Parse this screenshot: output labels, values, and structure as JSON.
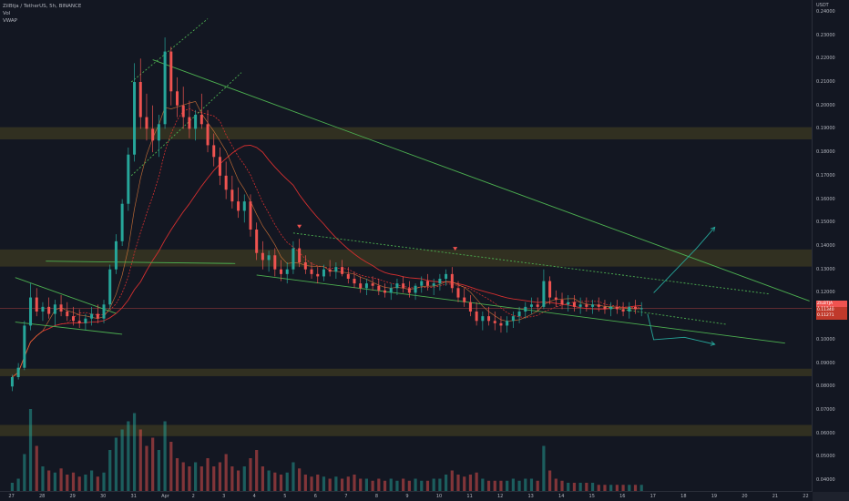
{
  "legend": {
    "symbol": "ZilBtja / TetherUS, 5h, BINANCE",
    "vol": "Vol",
    "vwap": "VWAP"
  },
  "price_axis": {
    "currency": "USDT",
    "ticks": [
      "0.24000",
      "0.23000",
      "0.22000",
      "0.21000",
      "0.20000",
      "0.19000",
      "0.18000",
      "0.17000",
      "0.16000",
      "0.15000",
      "0.14000",
      "0.13000",
      "0.12000",
      "0.11000",
      "0.10000",
      "0.09000",
      "0.08000",
      "0.07000",
      "0.06000",
      "0.05000",
      "0.04000"
    ]
  },
  "price_tags": [
    {
      "label": "ZILBTJA 0.11340",
      "color": "#ef5350"
    },
    {
      "label": "0.11340",
      "color": "#c0392b"
    },
    {
      "label": "0.11271",
      "color": "#c0392b"
    }
  ],
  "time_axis": {
    "ticks": [
      "27",
      "28",
      "29",
      "30",
      "31",
      "Apr",
      "2",
      "3",
      "4",
      "5",
      "6",
      "7",
      "8",
      "9",
      "10",
      "11",
      "12",
      "13",
      "14",
      "15",
      "16",
      "17",
      "18",
      "19",
      "20",
      "21",
      "22"
    ]
  },
  "corner": "",
  "colors": {
    "background": "#131722",
    "up": "#26a69a",
    "down": "#ef5350",
    "zone": "#4a4520",
    "trendline": "#4caf50",
    "ema_red": "#d32f2f",
    "ema_orange": "#e07b39",
    "vwap": "#c9a227"
  },
  "chart_data": {
    "type": "candlestick",
    "title": "ZilBtja / TetherUS, 5h, BINANCE",
    "ylim": [
      0.035,
      0.245
    ],
    "x_range_days": [
      26.6,
      53.2
    ],
    "support_resistance_zones": [
      {
        "low": 0.1855,
        "high": 0.1907
      },
      {
        "low": 0.1312,
        "high": 0.1385
      },
      {
        "low": 0.0844,
        "high": 0.0876
      },
      {
        "low": 0.0588,
        "high": 0.0636
      }
    ],
    "trendlines": [
      {
        "from": [
          27.1,
          0.1265
        ],
        "to": [
          30.4,
          0.1112
        ],
        "style": "solid"
      },
      {
        "from": [
          27.1,
          0.1075
        ],
        "to": [
          30.6,
          0.1023
        ],
        "style": "solid"
      },
      {
        "from": [
          28.1,
          0.1335
        ],
        "to": [
          34.3,
          0.1325
        ],
        "style": "solid"
      },
      {
        "from": [
          31.6,
          0.2195
        ],
        "to": [
          53.1,
          0.1165
        ],
        "style": "solid"
      },
      {
        "from": [
          35.0,
          0.1276
        ],
        "to": [
          52.3,
          0.0985
        ],
        "style": "solid"
      },
      {
        "from": [
          36.2,
          0.1455
        ],
        "to": [
          51.8,
          0.1195
        ],
        "style": "dotted"
      },
      {
        "from": [
          30.9,
          0.21
        ],
        "to": [
          33.4,
          0.237
        ],
        "style": "dotted"
      },
      {
        "from": [
          30.9,
          0.17
        ],
        "to": [
          34.5,
          0.214
        ],
        "style": "dotted"
      },
      {
        "from": [
          46.4,
          0.114
        ],
        "to": [
          50.4,
          0.1065
        ],
        "style": "dotted"
      }
    ],
    "markers": [
      {
        "x": 36.4,
        "y": 0.1475,
        "type": "down-arrow"
      },
      {
        "x": 41.5,
        "y": 0.138,
        "type": "down-arrow"
      }
    ],
    "projections": [
      {
        "points": [
          [
            48.0,
            0.12
          ],
          [
            49.4,
            0.139
          ],
          [
            50.0,
            0.148
          ]
        ],
        "label": "up"
      },
      {
        "points": [
          [
            47.8,
            0.111
          ],
          [
            48.0,
            0.1
          ],
          [
            49.0,
            0.101
          ],
          [
            50.0,
            0.098
          ]
        ],
        "label": "down"
      }
    ],
    "candles_ohlc": [
      [
        27.0,
        0.08,
        0.085,
        0.078,
        0.084
      ],
      [
        27.2,
        0.084,
        0.09,
        0.083,
        0.088
      ],
      [
        27.4,
        0.088,
        0.108,
        0.087,
        0.106
      ],
      [
        27.6,
        0.106,
        0.124,
        0.104,
        0.118
      ],
      [
        27.8,
        0.118,
        0.122,
        0.11,
        0.112
      ],
      [
        28.0,
        0.112,
        0.116,
        0.108,
        0.114
      ],
      [
        28.2,
        0.114,
        0.118,
        0.109,
        0.111
      ],
      [
        28.4,
        0.111,
        0.117,
        0.106,
        0.115
      ],
      [
        28.6,
        0.115,
        0.119,
        0.11,
        0.112
      ],
      [
        28.8,
        0.112,
        0.116,
        0.108,
        0.11
      ],
      [
        29.0,
        0.11,
        0.114,
        0.106,
        0.108
      ],
      [
        29.2,
        0.108,
        0.113,
        0.105,
        0.107
      ],
      [
        29.4,
        0.107,
        0.111,
        0.104,
        0.109
      ],
      [
        29.6,
        0.109,
        0.114,
        0.106,
        0.111
      ],
      [
        29.8,
        0.111,
        0.115,
        0.107,
        0.109
      ],
      [
        30.0,
        0.109,
        0.117,
        0.107,
        0.115
      ],
      [
        30.2,
        0.115,
        0.132,
        0.113,
        0.13
      ],
      [
        30.4,
        0.13,
        0.145,
        0.128,
        0.142
      ],
      [
        30.6,
        0.142,
        0.16,
        0.14,
        0.158
      ],
      [
        30.8,
        0.158,
        0.182,
        0.155,
        0.179
      ],
      [
        31.0,
        0.179,
        0.218,
        0.176,
        0.21
      ],
      [
        31.2,
        0.21,
        0.22,
        0.19,
        0.195
      ],
      [
        31.4,
        0.195,
        0.205,
        0.185,
        0.19
      ],
      [
        31.6,
        0.19,
        0.2,
        0.18,
        0.185
      ],
      [
        31.8,
        0.185,
        0.196,
        0.178,
        0.192
      ],
      [
        32.0,
        0.192,
        0.229,
        0.19,
        0.223
      ],
      [
        32.2,
        0.223,
        0.225,
        0.2,
        0.206
      ],
      [
        32.4,
        0.206,
        0.212,
        0.195,
        0.2
      ],
      [
        32.6,
        0.2,
        0.208,
        0.19,
        0.195
      ],
      [
        32.8,
        0.195,
        0.202,
        0.186,
        0.19
      ],
      [
        33.0,
        0.19,
        0.198,
        0.185,
        0.196
      ],
      [
        33.2,
        0.196,
        0.205,
        0.19,
        0.192
      ],
      [
        33.4,
        0.192,
        0.198,
        0.18,
        0.183
      ],
      [
        33.6,
        0.183,
        0.188,
        0.174,
        0.178
      ],
      [
        33.8,
        0.178,
        0.182,
        0.166,
        0.17
      ],
      [
        34.0,
        0.17,
        0.176,
        0.16,
        0.164
      ],
      [
        34.2,
        0.164,
        0.17,
        0.156,
        0.159
      ],
      [
        34.4,
        0.159,
        0.165,
        0.152,
        0.155
      ],
      [
        34.6,
        0.155,
        0.162,
        0.15,
        0.159
      ],
      [
        34.8,
        0.159,
        0.162,
        0.144,
        0.147
      ],
      [
        35.0,
        0.147,
        0.15,
        0.134,
        0.137
      ],
      [
        35.2,
        0.137,
        0.142,
        0.13,
        0.134
      ],
      [
        35.4,
        0.134,
        0.138,
        0.129,
        0.136
      ],
      [
        35.6,
        0.136,
        0.139,
        0.127,
        0.13
      ],
      [
        35.8,
        0.13,
        0.134,
        0.125,
        0.128
      ],
      [
        36.0,
        0.128,
        0.133,
        0.124,
        0.13
      ],
      [
        36.2,
        0.13,
        0.142,
        0.128,
        0.139
      ],
      [
        36.4,
        0.139,
        0.143,
        0.131,
        0.133
      ],
      [
        36.6,
        0.133,
        0.136,
        0.128,
        0.13
      ],
      [
        36.8,
        0.13,
        0.133,
        0.126,
        0.128
      ],
      [
        37.0,
        0.128,
        0.131,
        0.124,
        0.127
      ],
      [
        37.2,
        0.127,
        0.132,
        0.125,
        0.13
      ],
      [
        37.4,
        0.13,
        0.134,
        0.127,
        0.129
      ],
      [
        37.6,
        0.129,
        0.133,
        0.126,
        0.131
      ],
      [
        37.8,
        0.131,
        0.134,
        0.127,
        0.128
      ],
      [
        38.0,
        0.128,
        0.131,
        0.124,
        0.126
      ],
      [
        38.2,
        0.126,
        0.129,
        0.122,
        0.124
      ],
      [
        38.4,
        0.124,
        0.127,
        0.12,
        0.122
      ],
      [
        38.6,
        0.122,
        0.126,
        0.119,
        0.124
      ],
      [
        38.8,
        0.124,
        0.127,
        0.121,
        0.123
      ],
      [
        39.0,
        0.123,
        0.126,
        0.119,
        0.121
      ],
      [
        39.2,
        0.121,
        0.124,
        0.118,
        0.12
      ],
      [
        39.4,
        0.12,
        0.124,
        0.117,
        0.122
      ],
      [
        39.6,
        0.122,
        0.126,
        0.119,
        0.124
      ],
      [
        39.8,
        0.124,
        0.127,
        0.12,
        0.122
      ],
      [
        40.0,
        0.122,
        0.125,
        0.118,
        0.12
      ],
      [
        40.2,
        0.12,
        0.124,
        0.117,
        0.123
      ],
      [
        40.4,
        0.123,
        0.127,
        0.12,
        0.125
      ],
      [
        40.6,
        0.125,
        0.128,
        0.121,
        0.123
      ],
      [
        40.8,
        0.123,
        0.126,
        0.119,
        0.124
      ],
      [
        41.0,
        0.124,
        0.128,
        0.121,
        0.126
      ],
      [
        41.2,
        0.126,
        0.13,
        0.123,
        0.128
      ],
      [
        41.4,
        0.128,
        0.131,
        0.12,
        0.122
      ],
      [
        41.6,
        0.122,
        0.125,
        0.116,
        0.118
      ],
      [
        41.8,
        0.118,
        0.122,
        0.114,
        0.116
      ],
      [
        42.0,
        0.116,
        0.119,
        0.11,
        0.112
      ],
      [
        42.2,
        0.112,
        0.116,
        0.106,
        0.108
      ],
      [
        42.4,
        0.108,
        0.112,
        0.104,
        0.11
      ],
      [
        42.6,
        0.11,
        0.114,
        0.106,
        0.108
      ],
      [
        42.8,
        0.108,
        0.112,
        0.104,
        0.107
      ],
      [
        43.0,
        0.107,
        0.11,
        0.103,
        0.106
      ],
      [
        43.2,
        0.106,
        0.11,
        0.103,
        0.108
      ],
      [
        43.4,
        0.108,
        0.112,
        0.105,
        0.11
      ],
      [
        43.6,
        0.11,
        0.114,
        0.107,
        0.112
      ],
      [
        43.8,
        0.112,
        0.116,
        0.109,
        0.114
      ],
      [
        44.0,
        0.114,
        0.118,
        0.111,
        0.115
      ],
      [
        44.2,
        0.115,
        0.118,
        0.112,
        0.114
      ],
      [
        44.4,
        0.114,
        0.13,
        0.113,
        0.125
      ],
      [
        44.6,
        0.125,
        0.127,
        0.115,
        0.118
      ],
      [
        44.8,
        0.118,
        0.121,
        0.114,
        0.117
      ],
      [
        45.0,
        0.117,
        0.12,
        0.113,
        0.115
      ],
      [
        45.2,
        0.115,
        0.119,
        0.112,
        0.116
      ],
      [
        45.4,
        0.116,
        0.119,
        0.112,
        0.114
      ],
      [
        45.6,
        0.114,
        0.118,
        0.111,
        0.115
      ],
      [
        45.8,
        0.115,
        0.118,
        0.112,
        0.114
      ],
      [
        46.0,
        0.114,
        0.117,
        0.111,
        0.115
      ],
      [
        46.2,
        0.115,
        0.118,
        0.112,
        0.114
      ],
      [
        46.4,
        0.114,
        0.117,
        0.111,
        0.113
      ],
      [
        46.6,
        0.113,
        0.116,
        0.11,
        0.114
      ],
      [
        46.8,
        0.114,
        0.117,
        0.111,
        0.113
      ],
      [
        47.0,
        0.113,
        0.116,
        0.11,
        0.112
      ],
      [
        47.2,
        0.112,
        0.116,
        0.109,
        0.114
      ],
      [
        47.4,
        0.114,
        0.117,
        0.111,
        0.113
      ],
      [
        47.6,
        0.113,
        0.116,
        0.11,
        0.1134
      ]
    ],
    "volume": [
      [
        27.0,
        4
      ],
      [
        27.2,
        6
      ],
      [
        27.4,
        18
      ],
      [
        27.6,
        40
      ],
      [
        27.8,
        22
      ],
      [
        28.0,
        12
      ],
      [
        28.2,
        10
      ],
      [
        28.4,
        9
      ],
      [
        28.6,
        11
      ],
      [
        28.8,
        8
      ],
      [
        29.0,
        9
      ],
      [
        29.2,
        7
      ],
      [
        29.4,
        8
      ],
      [
        29.6,
        10
      ],
      [
        29.8,
        7
      ],
      [
        30.0,
        9
      ],
      [
        30.2,
        20
      ],
      [
        30.4,
        26
      ],
      [
        30.6,
        30
      ],
      [
        30.8,
        34
      ],
      [
        31.0,
        38
      ],
      [
        31.2,
        30
      ],
      [
        31.4,
        22
      ],
      [
        31.6,
        26
      ],
      [
        31.8,
        20
      ],
      [
        32.0,
        34
      ],
      [
        32.2,
        24
      ],
      [
        32.4,
        16
      ],
      [
        32.6,
        14
      ],
      [
        32.8,
        12
      ],
      [
        33.0,
        14
      ],
      [
        33.2,
        12
      ],
      [
        33.4,
        16
      ],
      [
        33.6,
        12
      ],
      [
        33.8,
        14
      ],
      [
        34.0,
        18
      ],
      [
        34.2,
        12
      ],
      [
        34.4,
        10
      ],
      [
        34.6,
        12
      ],
      [
        34.8,
        16
      ],
      [
        35.0,
        20
      ],
      [
        35.2,
        12
      ],
      [
        35.4,
        10
      ],
      [
        35.6,
        9
      ],
      [
        35.8,
        8
      ],
      [
        36.0,
        9
      ],
      [
        36.2,
        14
      ],
      [
        36.4,
        11
      ],
      [
        36.6,
        8
      ],
      [
        36.8,
        7
      ],
      [
        37.0,
        8
      ],
      [
        37.2,
        7
      ],
      [
        37.4,
        6
      ],
      [
        37.6,
        7
      ],
      [
        37.8,
        6
      ],
      [
        38.0,
        7
      ],
      [
        38.2,
        8
      ],
      [
        38.4,
        6
      ],
      [
        38.6,
        6
      ],
      [
        38.8,
        5
      ],
      [
        39.0,
        6
      ],
      [
        39.2,
        5
      ],
      [
        39.4,
        6
      ],
      [
        39.6,
        5
      ],
      [
        39.8,
        6
      ],
      [
        40.0,
        5
      ],
      [
        40.2,
        6
      ],
      [
        40.4,
        5
      ],
      [
        40.6,
        5
      ],
      [
        40.8,
        6
      ],
      [
        41.0,
        6
      ],
      [
        41.2,
        8
      ],
      [
        41.4,
        10
      ],
      [
        41.6,
        8
      ],
      [
        41.8,
        7
      ],
      [
        42.0,
        8
      ],
      [
        42.2,
        9
      ],
      [
        42.4,
        6
      ],
      [
        42.6,
        5
      ],
      [
        42.8,
        5
      ],
      [
        43.0,
        5
      ],
      [
        43.2,
        5
      ],
      [
        43.4,
        6
      ],
      [
        43.6,
        5
      ],
      [
        43.8,
        6
      ],
      [
        44.0,
        6
      ],
      [
        44.2,
        5
      ],
      [
        44.4,
        22
      ],
      [
        44.6,
        10
      ],
      [
        44.8,
        6
      ],
      [
        45.0,
        5
      ],
      [
        45.2,
        4
      ],
      [
        45.4,
        4
      ],
      [
        45.6,
        4
      ],
      [
        45.8,
        4
      ],
      [
        46.0,
        4
      ],
      [
        46.2,
        3
      ],
      [
        46.4,
        3
      ],
      [
        46.6,
        3
      ],
      [
        46.8,
        3
      ],
      [
        47.0,
        3
      ],
      [
        47.2,
        3
      ],
      [
        47.4,
        3
      ],
      [
        47.6,
        3
      ]
    ]
  }
}
